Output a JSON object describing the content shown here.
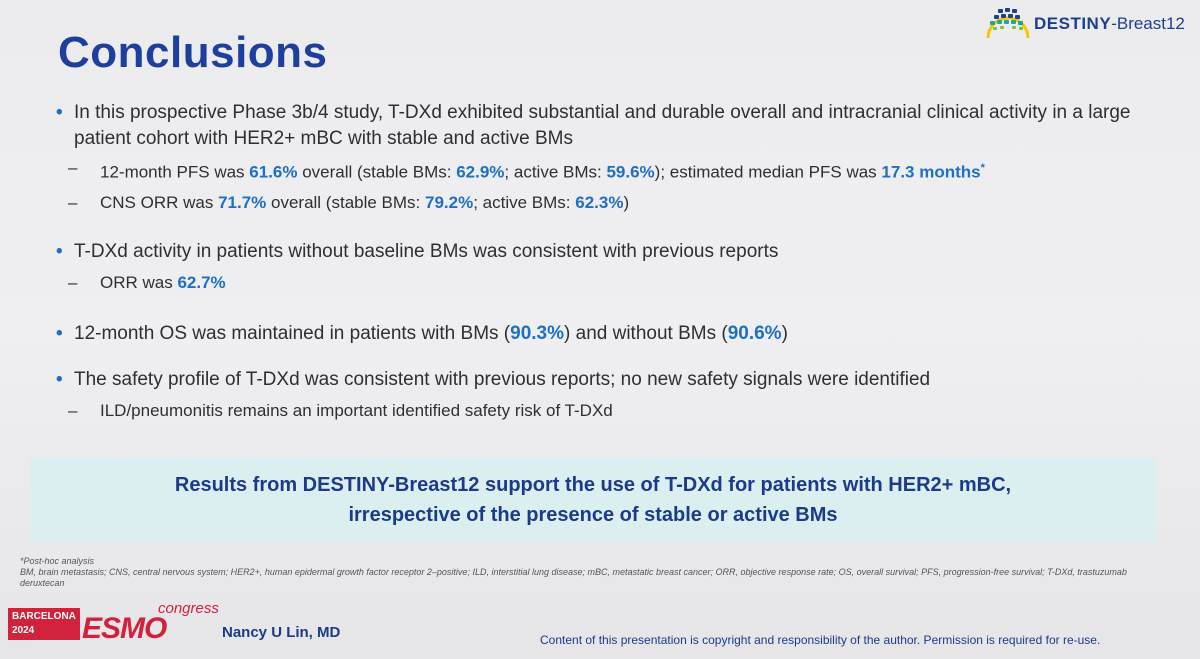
{
  "title": "Conclusions",
  "logo": {
    "prefix": "DESTINY",
    "suffix": "-Breast12"
  },
  "bullets": [
    {
      "text": "In this prospective Phase 3b/4 study, T-DXd exhibited substantial and durable overall and intracranial clinical activity in a large patient cohort with HER2+ mBC with stable and active BMs",
      "subs": [
        {
          "parts": [
            {
              "t": "12-month PFS was ",
              "hl": false
            },
            {
              "t": "61.6%",
              "hl": true
            },
            {
              "t": " overall (stable BMs: ",
              "hl": false
            },
            {
              "t": "62.9%",
              "hl": true
            },
            {
              "t": "; active BMs: ",
              "hl": false
            },
            {
              "t": "59.6%",
              "hl": true
            },
            {
              "t": "); estimated median PFS was ",
              "hl": false
            },
            {
              "t": "17.3 months",
              "hl": true
            },
            {
              "t": "*",
              "hl": true
            }
          ]
        },
        {
          "parts": [
            {
              "t": "CNS ORR was ",
              "hl": false
            },
            {
              "t": "71.7%",
              "hl": true
            },
            {
              "t": " overall (stable BMs: ",
              "hl": false
            },
            {
              "t": "79.2%",
              "hl": true
            },
            {
              "t": "; active BMs: ",
              "hl": false
            },
            {
              "t": "62.3%",
              "hl": true
            },
            {
              "t": ")",
              "hl": false
            }
          ]
        }
      ]
    },
    {
      "text": "T-DXd activity in patients without baseline BMs was consistent with previous reports",
      "subs": [
        {
          "parts": [
            {
              "t": "ORR was ",
              "hl": false
            },
            {
              "t": "62.7%",
              "hl": true
            }
          ]
        }
      ]
    },
    {
      "parts": [
        {
          "t": "12-month OS was maintained in patients with BMs (",
          "hl": false
        },
        {
          "t": "90.3%",
          "hl": true
        },
        {
          "t": ") and without BMs (",
          "hl": false
        },
        {
          "t": "90.6%",
          "hl": true
        },
        {
          "t": ")",
          "hl": false
        }
      ],
      "subs": []
    },
    {
      "text": "The safety profile of T-DXd was consistent with previous reports; no new safety signals were identified",
      "subs": [
        {
          "parts": [
            {
              "t": "ILD/pneumonitis remains an important identified safety risk of T-DXd",
              "hl": false
            }
          ]
        }
      ]
    }
  ],
  "callout": {
    "line1": "Results from DESTINY-Breast12 support the use of T-DXd for patients with HER2+ mBC,",
    "line2": "irrespective of the presence of stable or active BMs"
  },
  "footnotes": {
    "posthoc": "*Post-hoc analysis",
    "abbreviations": "BM, brain metastasis; CNS, central nervous system; HER2+, human epidermal growth factor receptor 2–positive; ILD, interstitial lung disease; mBC, metastatic breast cancer; ORR, objective response rate; OS, overall survival; PFS, progression-free survival; T-DXd, trastuzumab deruxtecan"
  },
  "congress": {
    "city": "BARCELONA",
    "year": "2024",
    "brand": "ESMO",
    "word": "congress"
  },
  "author": "Nancy U Lin, MD",
  "copyright": "Content of this presentation is copyright and responsibility of the author. Permission is required for re-use.",
  "colors": {
    "title": "#1f3f9e",
    "highlight": "#1f6fc4",
    "callout_bg": "#dbeff1",
    "esmo_red": "#d2213a"
  }
}
